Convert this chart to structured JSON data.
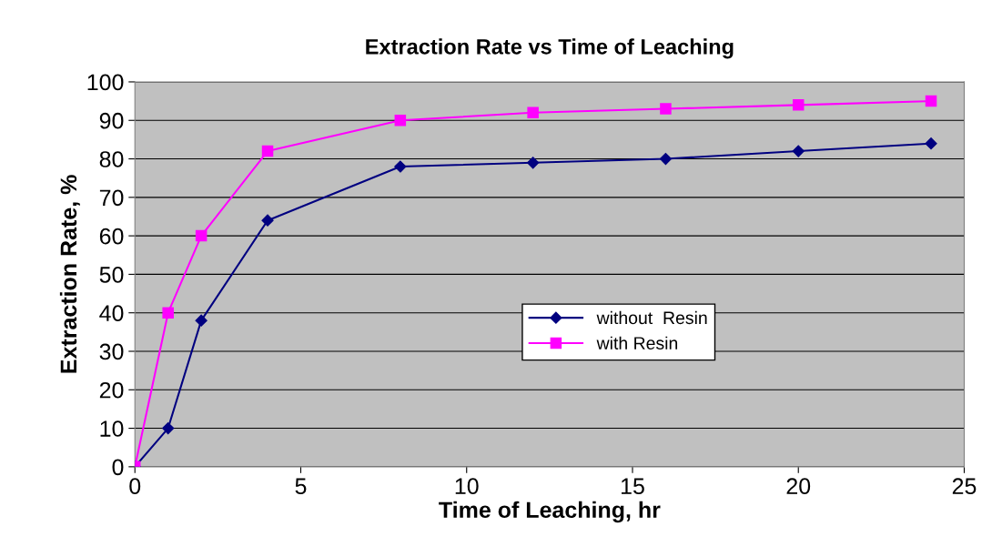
{
  "chart_data": {
    "type": "line",
    "title": "Extraction Rate vs Time of Leaching",
    "xlabel": "Time of Leaching, hr",
    "ylabel": "Extraction Rate, %",
    "x": [
      0,
      1,
      2,
      4,
      8,
      12,
      16,
      20,
      24
    ],
    "series": [
      {
        "name": "without  Resin",
        "color": "#000080",
        "marker": "diamond",
        "values": [
          0,
          10,
          38,
          64,
          78,
          79,
          80,
          82,
          84
        ]
      },
      {
        "name": "with Resin",
        "color": "#ff00ff",
        "marker": "square",
        "values": [
          0,
          40,
          60,
          82,
          90,
          92,
          93,
          94,
          95
        ]
      }
    ],
    "xlim": [
      0,
      25
    ],
    "xticks": [
      0,
      5,
      10,
      15,
      20,
      25
    ],
    "ylim": [
      0,
      100
    ],
    "yticks": [
      0,
      10,
      20,
      30,
      40,
      50,
      60,
      70,
      80,
      90,
      100
    ],
    "grid": "y",
    "legend": "right",
    "line_style": "solid"
  }
}
